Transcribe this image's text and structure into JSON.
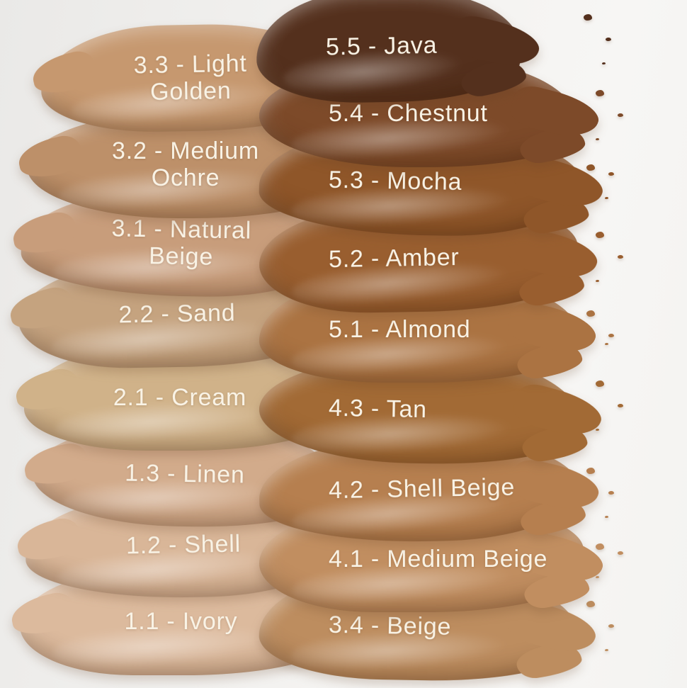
{
  "canvas": {
    "background_color": "#f2f1ef",
    "label_text_color": "#f9f3e6"
  },
  "shade_chart": {
    "left_column": [
      {
        "label": "3.3 - Light Golden",
        "color": "#c6986f"
      },
      {
        "label": "3.2 - Medium Ochre",
        "color": "#bd9069"
      },
      {
        "label": "3.1 - Natural Beige",
        "color": "#c89d7b"
      },
      {
        "label": "2.2 - Sand",
        "color": "#c5a37f"
      },
      {
        "label": "2.1 - Cream",
        "color": "#d0b289"
      },
      {
        "label": "1.3 - Linen",
        "color": "#d2ab8b"
      },
      {
        "label": "1.2 - Shell",
        "color": "#d9b698"
      },
      {
        "label": "1.1 - Ivory",
        "color": "#dcba9d"
      }
    ],
    "right_column": [
      {
        "label": "5.5 - Java",
        "color": "#54301d"
      },
      {
        "label": "5.4 - Chestnut",
        "color": "#7d4a29"
      },
      {
        "label": "5.3 - Mocha",
        "color": "#8f5629"
      },
      {
        "label": "5.2 - Amber",
        "color": "#995e2f"
      },
      {
        "label": "5.1 - Almond",
        "color": "#ab7342"
      },
      {
        "label": "4.3 - Tan",
        "color": "#a26a35"
      },
      {
        "label": "4.2 - Shell Beige",
        "color": "#b67f4f"
      },
      {
        "label": "4.1 - Medium Beige",
        "color": "#c18e60"
      },
      {
        "label": "3.4 - Beige",
        "color": "#bd8d5f"
      }
    ]
  }
}
